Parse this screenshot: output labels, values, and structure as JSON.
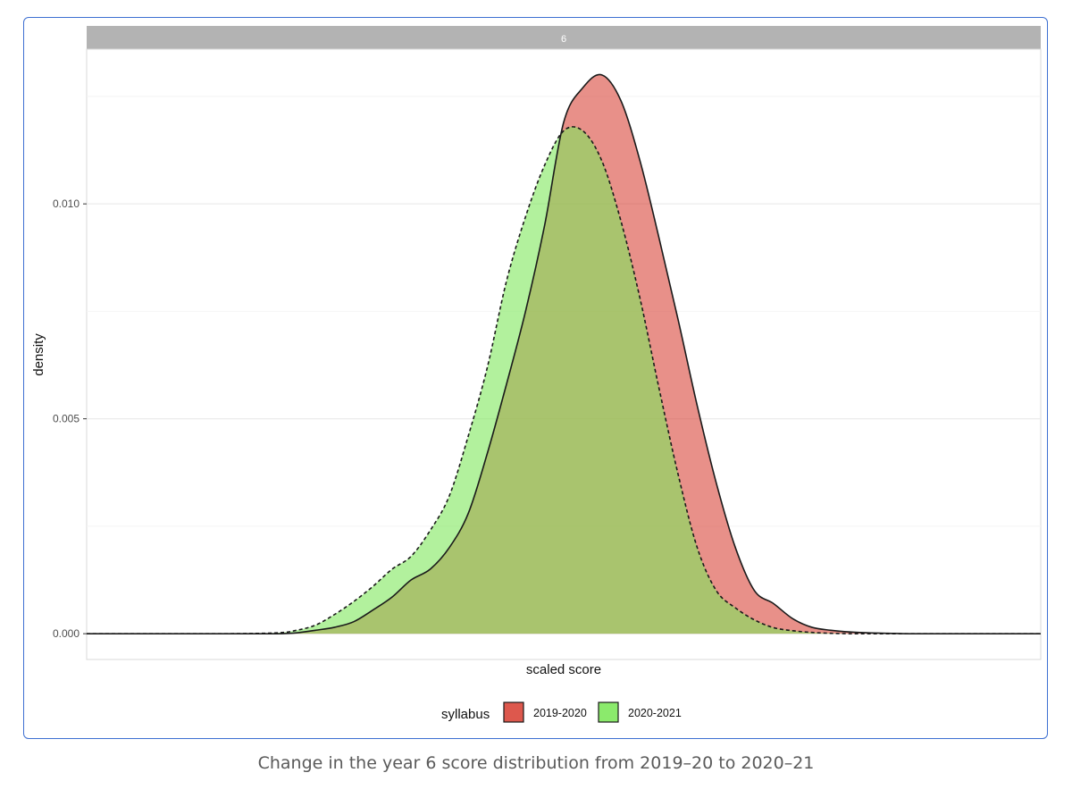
{
  "chart_data": {
    "type": "area",
    "facet_label": "6",
    "title": "",
    "xlabel": "scaled score",
    "ylabel": "density",
    "xlim": [
      0,
      100
    ],
    "ylim": [
      -0.0006,
      0.0136
    ],
    "y_ticks": [
      0.0,
      0.005,
      0.01
    ],
    "y_tick_labels": [
      "0.000",
      "0.005",
      "0.010"
    ],
    "grid": true,
    "legend": {
      "title": "syllabus",
      "position": "bottom"
    },
    "x": [
      0,
      5,
      10,
      15,
      20,
      22,
      24,
      26,
      28,
      30,
      32,
      34,
      36,
      38,
      40,
      42,
      44,
      46,
      48,
      50,
      52,
      54,
      56,
      58,
      60,
      62,
      64,
      66,
      68,
      70,
      72,
      74,
      76,
      78,
      80,
      82,
      84,
      86,
      88,
      90,
      92,
      95,
      100
    ],
    "series": [
      {
        "name": "2019-2020",
        "color": "#d9463a",
        "line": "solid",
        "values": [
          0.0,
          0.0,
          0.0,
          0.0,
          0.0,
          2e-05,
          8e-05,
          0.00015,
          0.00028,
          0.00055,
          0.00085,
          0.00125,
          0.0015,
          0.002,
          0.0028,
          0.0042,
          0.0058,
          0.0075,
          0.0095,
          0.0119,
          0.0127,
          0.013,
          0.0124,
          0.011,
          0.0092,
          0.0073,
          0.0053,
          0.0035,
          0.002,
          0.001,
          0.0007,
          0.00035,
          0.00015,
          8e-05,
          4e-05,
          2e-05,
          1e-05,
          0.0,
          0.0,
          0.0,
          0.0,
          0.0,
          0.0
        ]
      },
      {
        "name": "2020-2021",
        "color": "#7ee85c",
        "line": "dashed",
        "values": [
          0.0,
          0.0,
          0.0,
          0.0,
          2e-05,
          8e-05,
          0.0002,
          0.00045,
          0.00075,
          0.0011,
          0.0015,
          0.0018,
          0.0024,
          0.0032,
          0.0046,
          0.0062,
          0.0082,
          0.0097,
          0.0109,
          0.0117,
          0.0117,
          0.011,
          0.0096,
          0.0078,
          0.0057,
          0.0037,
          0.002,
          0.001,
          0.0006,
          0.00032,
          0.00014,
          7e-05,
          3e-05,
          1e-05,
          0.0,
          0.0,
          0.0,
          0.0,
          0.0,
          0.0,
          0.0,
          0.0,
          0.0
        ]
      }
    ]
  },
  "caption": "Change in the year 6 score distribution from 2019–20 to 2020–21"
}
